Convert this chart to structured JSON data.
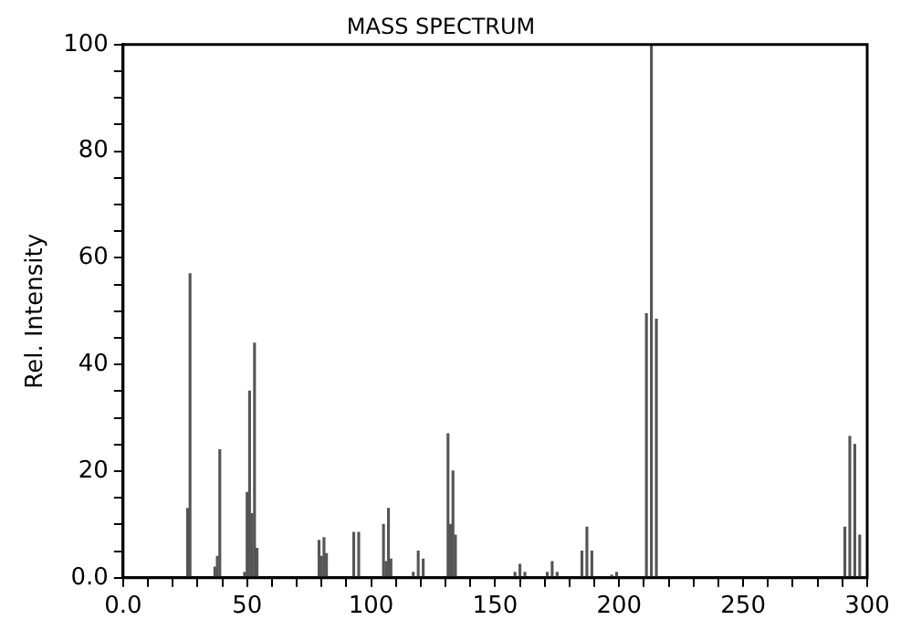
{
  "chart_data": {
    "type": "bar",
    "title": "MASS SPECTRUM",
    "ylabel": "Rel. Intensity",
    "color": "#555555",
    "grid": false,
    "x": [
      26,
      27,
      37,
      38,
      39,
      49,
      50,
      51,
      52,
      53,
      54,
      79,
      80,
      81,
      82,
      93,
      95,
      105,
      106,
      107,
      108,
      117,
      119,
      121,
      131,
      132,
      133,
      134,
      158,
      160,
      162,
      171,
      173,
      175,
      185,
      187,
      189,
      197,
      199,
      211,
      213,
      215,
      291,
      293,
      295,
      297
    ],
    "values": [
      13,
      57,
      2,
      4,
      24,
      1,
      16,
      35,
      12,
      44,
      5.5,
      7,
      4,
      7.5,
      4.5,
      8.5,
      8.5,
      10,
      3,
      13,
      3.5,
      1,
      5,
      3.5,
      27,
      10,
      20,
      8,
      1,
      2.5,
      1,
      1,
      3,
      1,
      5,
      9.5,
      5,
      0.5,
      1,
      49.5,
      100,
      48.5,
      9.5,
      26.5,
      25,
      8
    ],
    "xlim": [
      0,
      300
    ],
    "xticks": [
      {
        "value": 0,
        "label": "0.0"
      },
      {
        "value": 10,
        "label": null
      },
      {
        "value": 20,
        "label": null
      },
      {
        "value": 30,
        "label": null
      },
      {
        "value": 40,
        "label": null
      },
      50,
      {
        "value": 60,
        "label": null
      },
      {
        "value": 70,
        "label": null
      },
      {
        "value": 80,
        "label": null
      },
      {
        "value": 90,
        "label": null
      },
      100,
      {
        "value": 110,
        "label": null
      },
      {
        "value": 120,
        "label": null
      },
      {
        "value": 130,
        "label": null
      },
      {
        "value": 140,
        "label": null
      },
      150,
      {
        "value": 160,
        "label": null
      },
      {
        "value": 170,
        "label": null
      },
      {
        "value": 180,
        "label": null
      },
      {
        "value": 190,
        "label": null
      },
      200,
      {
        "value": 210,
        "label": null
      },
      {
        "value": 220,
        "label": null
      },
      {
        "value": 230,
        "label": null
      },
      {
        "value": 240,
        "label": null
      },
      250,
      {
        "value": 260,
        "label": null
      },
      {
        "value": 270,
        "label": null
      },
      {
        "value": 280,
        "label": null
      },
      {
        "value": 290,
        "label": null
      },
      300
    ],
    "ylim": [
      0,
      100
    ],
    "yticks": [
      {
        "value": 0,
        "label": "0.0"
      },
      {
        "value": 5,
        "label": null
      },
      {
        "value": 10,
        "label": null
      },
      {
        "value": 15,
        "label": null
      },
      20,
      {
        "value": 25,
        "label": null
      },
      {
        "value": 30,
        "label": null
      },
      {
        "value": 35,
        "label": null
      },
      40,
      {
        "value": 45,
        "label": null
      },
      {
        "value": 50,
        "label": null
      },
      {
        "value": 55,
        "label": null
      },
      60,
      {
        "value": 65,
        "label": null
      },
      {
        "value": 70,
        "label": null
      },
      {
        "value": 75,
        "label": null
      },
      80,
      {
        "value": 85,
        "label": null
      },
      {
        "value": 90,
        "label": null
      },
      {
        "value": 95,
        "label": null
      },
      100
    ]
  }
}
